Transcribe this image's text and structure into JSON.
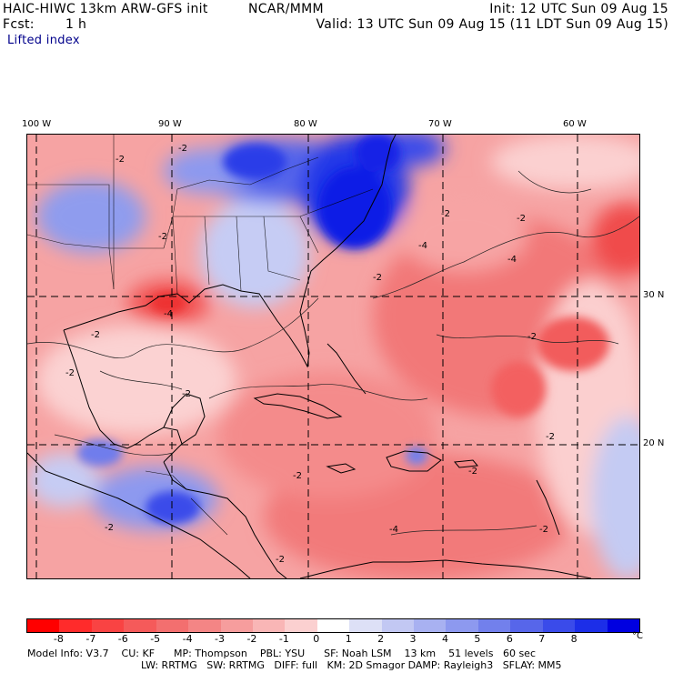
{
  "header": {
    "model": "HAIC-HIWC 13km ARW-GFS init",
    "org": "NCAR/MMM",
    "init": "Init: 12 UTC Sun 09 Aug 15",
    "fcst_label": "Fcst:",
    "fcst_value": "1 h",
    "valid": "Valid: 13 UTC Sun 09 Aug 15 (11 LDT Sun 09 Aug 15)",
    "field": "Lifted index"
  },
  "map": {
    "lon_labels": [
      "100 W",
      "90 W",
      "80 W",
      "70 W",
      "60 W"
    ],
    "lat_labels": [
      "30 N",
      "20 N"
    ],
    "contour_labels": [
      "-2",
      "-2",
      "-2",
      "-2",
      "-4",
      "-4",
      "-2",
      "-2",
      "-2",
      "-4",
      "-2",
      "-2",
      "-2",
      "-2",
      "-2",
      "-2",
      "-2",
      "-4",
      "-2",
      "-2"
    ],
    "colors": {
      "strong_red": "#ff2020",
      "mid_red": "#f26a6a",
      "light_red": "#f9b0b0",
      "pale_red": "#fbd6d6",
      "pale_blue": "#d6dcf6",
      "mid_blue": "#7f8ff0",
      "strong_blue": "#0000e6"
    }
  },
  "legend": {
    "ticks": [
      "-8",
      "-7",
      "-6",
      "-5",
      "-4",
      "-3",
      "-2",
      "-1",
      "0",
      "1",
      "2",
      "3",
      "4",
      "5",
      "6",
      "7",
      "8"
    ],
    "unit": "°C",
    "colors": [
      "#ff0000",
      "#ff2b2b",
      "#f94343",
      "#f55a5a",
      "#f36f6f",
      "#f48585",
      "#f69d9d",
      "#f9b6b6",
      "#fbd0d0",
      "#ffffff",
      "#dde0f6",
      "#c2c8f3",
      "#a8b1f1",
      "#8d99ef",
      "#7280ec",
      "#5766ea",
      "#3a4bea",
      "#1c2ee8",
      "#0000e0"
    ]
  },
  "footer": {
    "line1": "Model Info: V3.7    CU: KF      MP: Thompson    PBL: YSU      SF: Noah LSM    13 km    51 levels   60 sec",
    "line2": "LW: RRTMG   SW: RRTMG   DIFF: full   KM: 2D Smagor DAMP: Rayleigh3   SFLAY: MM5"
  }
}
